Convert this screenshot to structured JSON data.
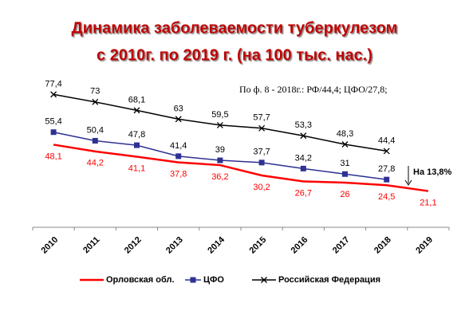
{
  "chart_data": {
    "type": "line",
    "title": [
      "Динамика заболеваемости туберкулезом",
      "с 2010г. по 2019 г. (на 100 тыс. нас.)"
    ],
    "annotations": [
      "По ф. 8 - 2018г.: РФ/44,4; ЦФО/27,8;",
      "На 13,8%"
    ],
    "categories": [
      "2010",
      "2011",
      "2012",
      "2013",
      "2014",
      "2015",
      "2016",
      "2017",
      "2018",
      "2019"
    ],
    "ylim": [
      0,
      85
    ],
    "series": [
      {
        "name": "Орловская обл.",
        "color": "#ff0000",
        "marker": "none",
        "values": [
          48.1,
          44.2,
          41.1,
          37.8,
          36.2,
          30.2,
          26.7,
          26,
          24.5,
          21.1
        ],
        "value_labels": [
          "48,1",
          "44,2",
          "41,1",
          "37,8",
          "36,2",
          "30,2",
          "26,7",
          "26",
          "24,5",
          "21,1"
        ]
      },
      {
        "name": "ЦФО",
        "color": "#2e3192",
        "marker": "square",
        "values": [
          55.4,
          50.4,
          47.8,
          41.4,
          39,
          37.7,
          34.2,
          31,
          27.8,
          null
        ],
        "value_labels": [
          "55,4",
          "50,4",
          "47,8",
          "41,4",
          "39",
          "37,7",
          "34,2",
          "31",
          "27,8",
          null
        ]
      },
      {
        "name": "Российская Федерация",
        "color": "#000000",
        "marker": "x",
        "values": [
          77.4,
          73,
          68.1,
          63,
          59.5,
          57.7,
          53.3,
          48.3,
          44.4,
          null
        ],
        "value_labels": [
          "77,4",
          "73",
          "68,1",
          "63",
          "59,5",
          "57,7",
          "53,3",
          "48,3",
          "44,4",
          null
        ]
      }
    ]
  }
}
